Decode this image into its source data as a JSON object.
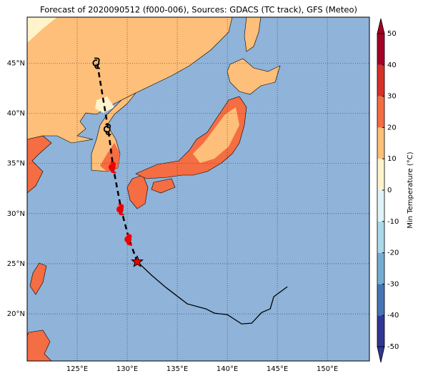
{
  "map": {
    "title": "Forecast of 2020090512 (f000-006), Sources: GDACS (TC track), GFS (Meteo)",
    "xlim": [
      120,
      154.2
    ],
    "ylim": [
      15.3,
      49.6
    ],
    "xticks": [
      {
        "value": 125,
        "label": "125°E"
      },
      {
        "value": 130,
        "label": "130°E"
      },
      {
        "value": 135,
        "label": "135°E"
      },
      {
        "value": 140,
        "label": "140°E"
      },
      {
        "value": 145,
        "label": "145°E"
      },
      {
        "value": 150,
        "label": "150°E"
      }
    ],
    "yticks": [
      {
        "value": 20,
        "label": "20°N"
      },
      {
        "value": 25,
        "label": "25°N"
      },
      {
        "value": 30,
        "label": "30°N"
      },
      {
        "value": 35,
        "label": "35°N"
      },
      {
        "value": 40,
        "label": "40°N"
      },
      {
        "value": 45,
        "label": "45°N"
      }
    ],
    "past_track": {
      "lon": [
        131.0,
        132.43,
        133.86,
        136.0,
        137.86,
        138.71,
        140.0,
        141.43,
        142.43,
        143.43,
        144.29,
        144.64,
        146.0
      ],
      "lat": [
        25.21,
        23.86,
        22.64,
        21.0,
        20.5,
        20.07,
        19.93,
        19.0,
        19.07,
        20.14,
        20.5,
        21.71,
        22.71
      ]
    },
    "forecast_track": {
      "lon": [
        131.0,
        130.2,
        129.4,
        128.6,
        128.1,
        127.0
      ],
      "lat": [
        25.2,
        27.4,
        30.4,
        34.6,
        38.4,
        45.0
      ]
    },
    "colorbar": {
      "label": "Min Temperature (°C)",
      "range": [
        -50,
        50
      ],
      "ticks": [
        -50,
        -40,
        -30,
        -20,
        -10,
        0,
        10,
        20,
        30,
        40,
        50
      ],
      "colors": [
        "#313695",
        "#4575b4",
        "#74add1",
        "#abd9e9",
        "#e0f3f8",
        "#fff3cc",
        "#fdbf79",
        "#f46d43",
        "#d73027",
        "#a50026"
      ]
    }
  }
}
